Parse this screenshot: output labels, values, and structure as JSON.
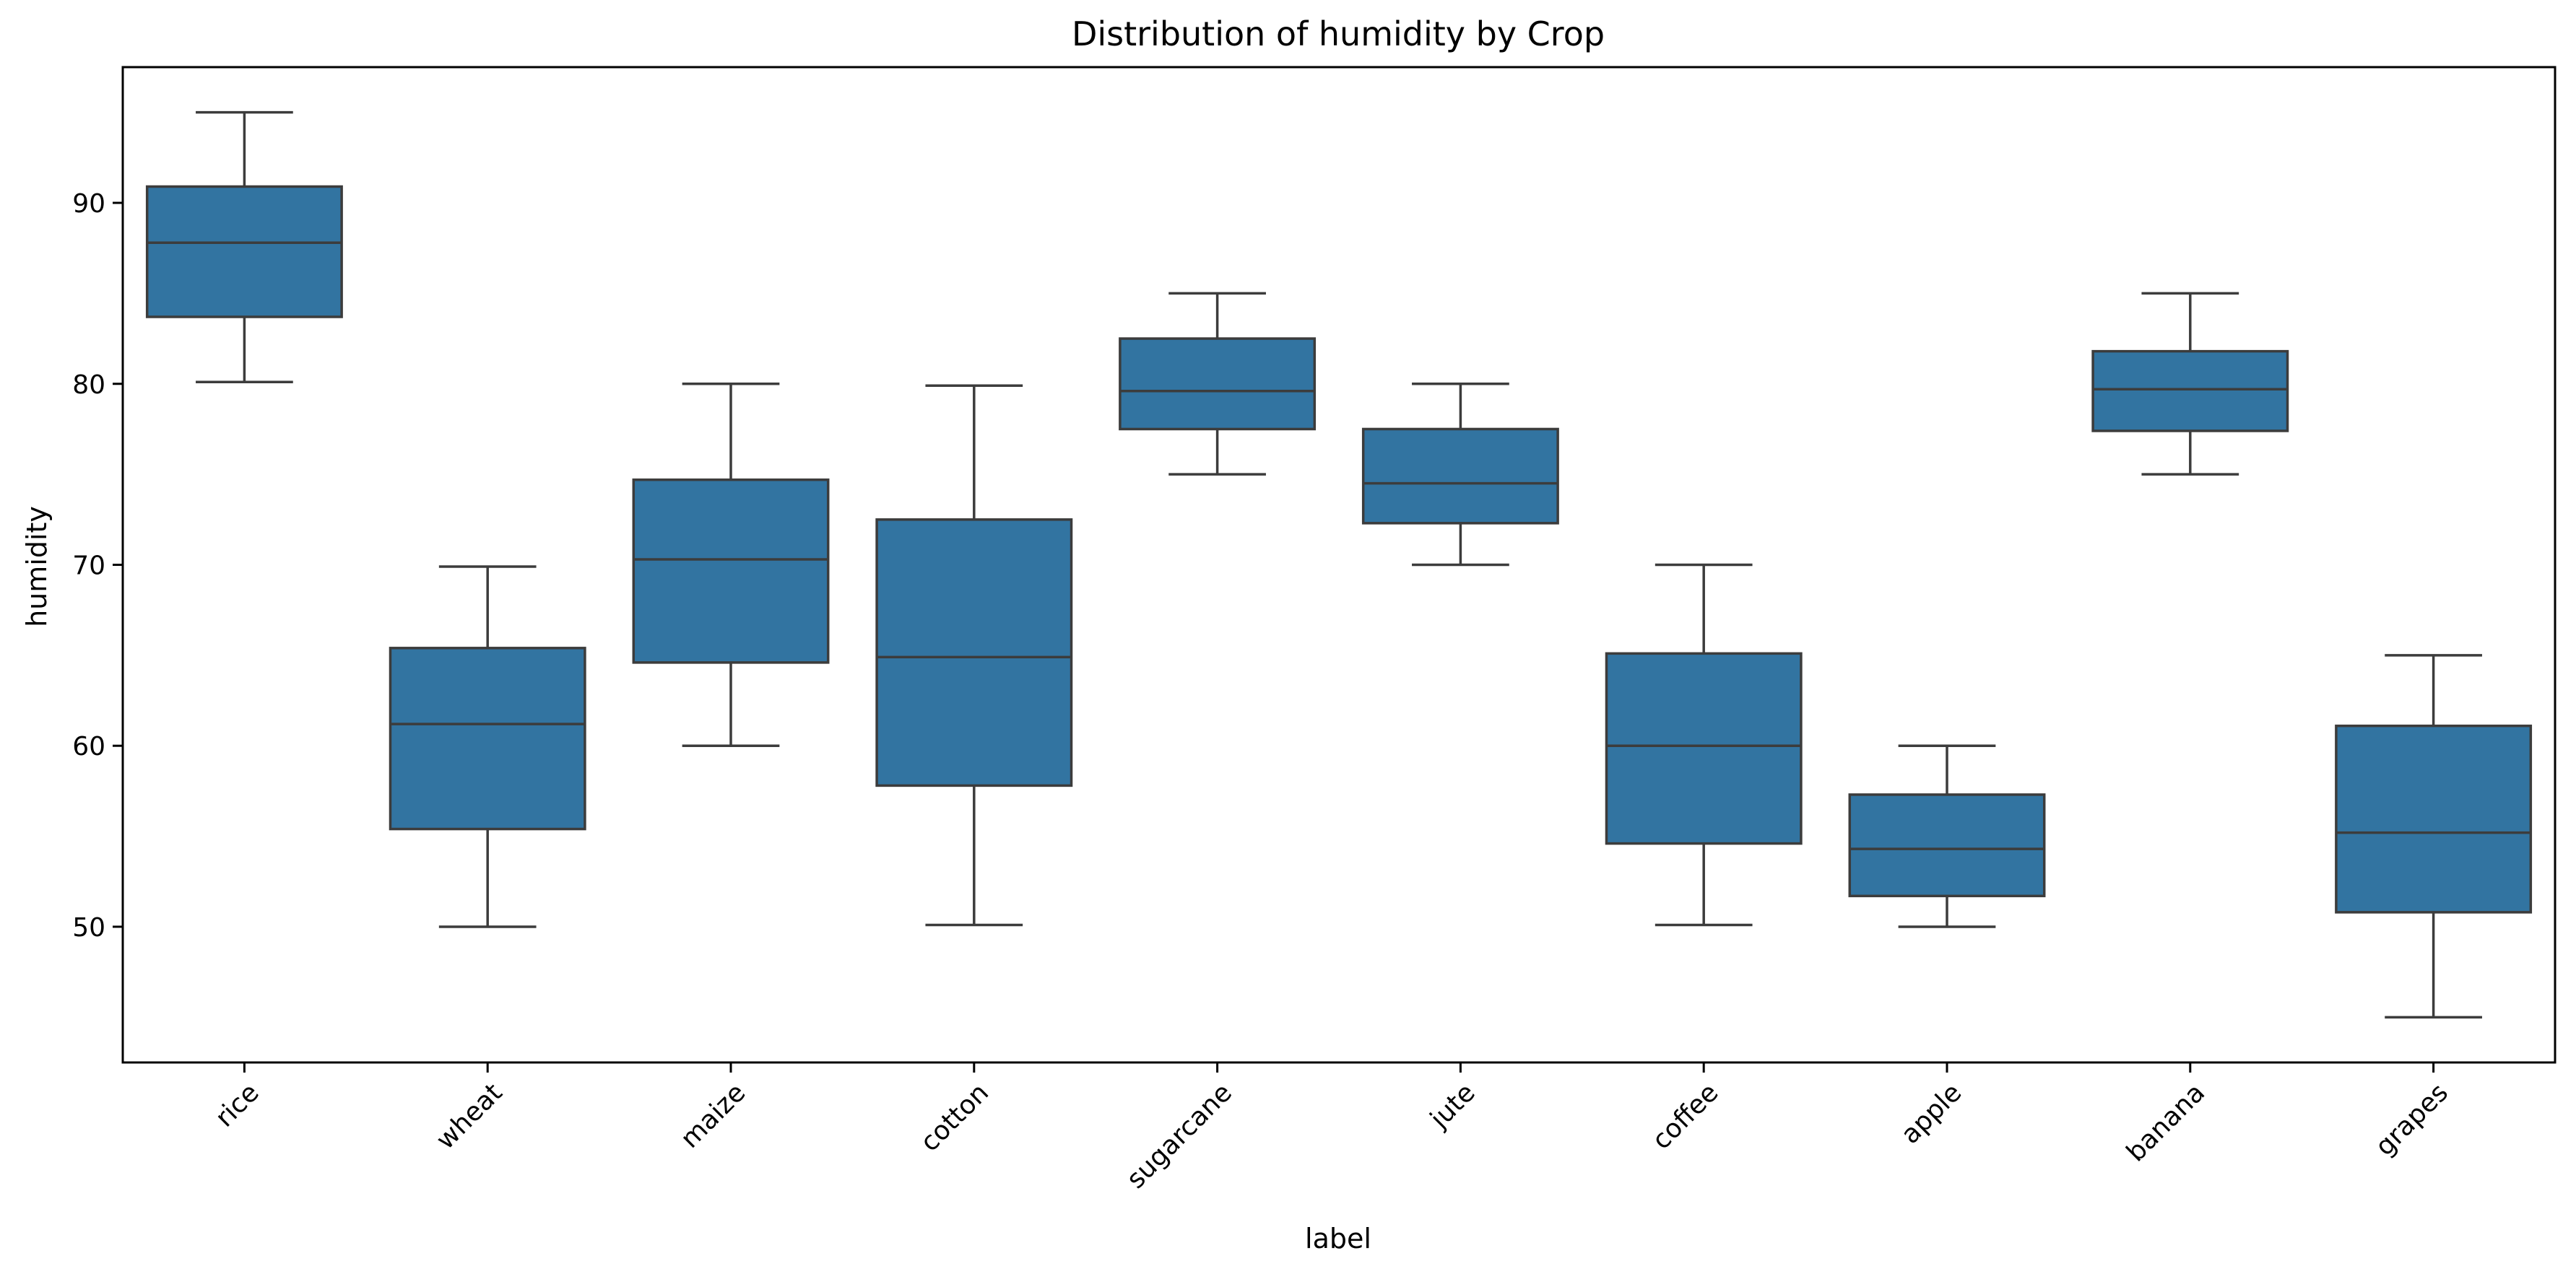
{
  "chart_data": {
    "type": "boxplot",
    "title": "Distribution of humidity by Crop",
    "xlabel": "label",
    "ylabel": "humidity",
    "ylim": [
      42.5,
      97.5
    ],
    "yticks": [
      50,
      60,
      70,
      80,
      90
    ],
    "grid": false,
    "legend": "none",
    "categories": [
      "rice",
      "wheat",
      "maize",
      "cotton",
      "sugarcane",
      "jute",
      "coffee",
      "apple",
      "banana",
      "grapes"
    ],
    "boxes": [
      {
        "label": "rice",
        "whisker_low": 80.1,
        "q1": 83.7,
        "median": 87.8,
        "q3": 90.9,
        "whisker_high": 95.0
      },
      {
        "label": "wheat",
        "whisker_low": 50.0,
        "q1": 55.4,
        "median": 61.2,
        "q3": 65.4,
        "whisker_high": 69.9
      },
      {
        "label": "maize",
        "whisker_low": 60.0,
        "q1": 64.6,
        "median": 70.3,
        "q3": 74.7,
        "whisker_high": 80.0
      },
      {
        "label": "cotton",
        "whisker_low": 50.1,
        "q1": 57.8,
        "median": 64.9,
        "q3": 72.5,
        "whisker_high": 79.9
      },
      {
        "label": "sugarcane",
        "whisker_low": 75.0,
        "q1": 77.5,
        "median": 79.6,
        "q3": 82.5,
        "whisker_high": 85.0
      },
      {
        "label": "jute",
        "whisker_low": 70.0,
        "q1": 72.3,
        "median": 74.5,
        "q3": 77.5,
        "whisker_high": 80.0
      },
      {
        "label": "coffee",
        "whisker_low": 50.1,
        "q1": 54.6,
        "median": 60.0,
        "q3": 65.1,
        "whisker_high": 70.0
      },
      {
        "label": "apple",
        "whisker_low": 50.0,
        "q1": 51.7,
        "median": 54.3,
        "q3": 57.3,
        "whisker_high": 60.0
      },
      {
        "label": "banana",
        "whisker_low": 75.0,
        "q1": 77.4,
        "median": 79.7,
        "q3": 81.8,
        "whisker_high": 85.0
      },
      {
        "label": "grapes",
        "whisker_low": 45.0,
        "q1": 50.8,
        "median": 55.2,
        "q3": 61.1,
        "whisker_high": 65.0
      }
    ],
    "box_color": "#3274a1",
    "line_color": "#3c3c3c"
  }
}
